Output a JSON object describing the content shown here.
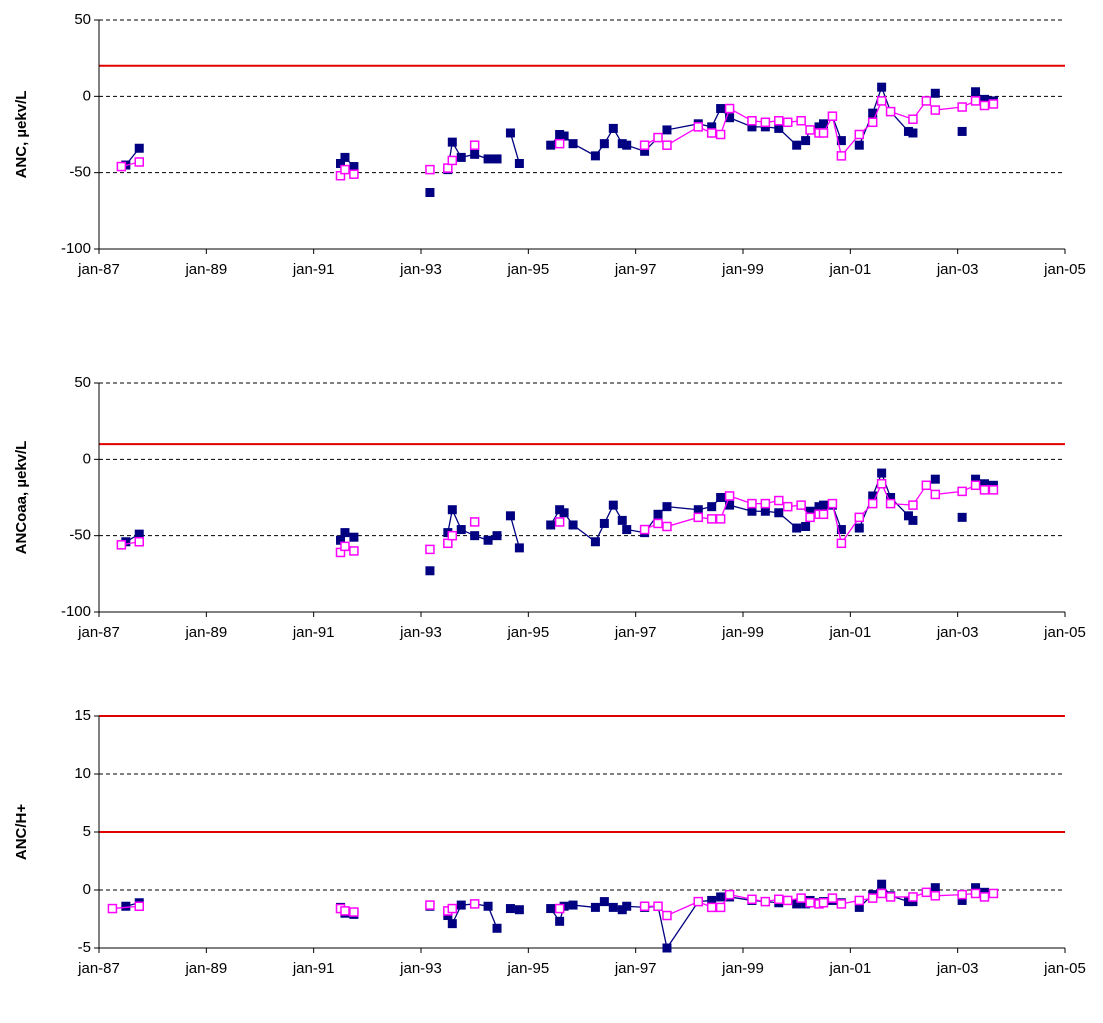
{
  "chart_data": [
    {
      "type": "line",
      "ylabel": "ANC, µekv/L",
      "ylim": [
        -100,
        50
      ],
      "yticks": [
        -100,
        -50,
        0,
        50
      ],
      "xlim": [
        "1987-01",
        "2005-01"
      ],
      "xticks": [
        {
          "value": "1987-01",
          "label": "jan-87"
        },
        {
          "value": "1989-01",
          "label": "jan-89"
        },
        {
          "value": "1991-01",
          "label": "jan-91"
        },
        {
          "value": "1993-01",
          "label": "jan-93"
        },
        {
          "value": "1995-01",
          "label": "jan-95"
        },
        {
          "value": "1997-01",
          "label": "jan-97"
        },
        {
          "value": "1999-01",
          "label": "jan-99"
        },
        {
          "value": "2001-01",
          "label": "jan-01"
        },
        {
          "value": "2003-01",
          "label": "jan-03"
        },
        {
          "value": "2005-01",
          "label": "jan-05"
        }
      ],
      "grid": true,
      "ref_lines": {
        "values": [
          20
        ],
        "color": "#e00000"
      },
      "series": [
        {
          "color": "#000080",
          "marker": "filled",
          "x": [
            "1987-07",
            "1987-10",
            null,
            "1991-07",
            "1991-08",
            "1991-10",
            null,
            "1993-03",
            null,
            "1993-07",
            "1993-08",
            "1993-10",
            "1994-01",
            "1994-04",
            "1994-06",
            null,
            "1994-09",
            "1994-11",
            null,
            "1995-06",
            "1995-08",
            "1995-09",
            "1995-11",
            "1996-04",
            "1996-06",
            "1996-08",
            "1996-10",
            "1996-11",
            "1997-03",
            "1997-06",
            "1997-08",
            "1998-03",
            "1998-06",
            "1998-08",
            "1998-10",
            "1999-03",
            "1999-06",
            "1999-09",
            "2000-01",
            "2000-03",
            "2000-04",
            "2000-06",
            "2000-07",
            "2000-09",
            "2000-11",
            null,
            "2001-03",
            "2001-06",
            "2001-08",
            "2001-10",
            "2002-02",
            "2002-03",
            null,
            "2002-08",
            null,
            "2003-02",
            null,
            "2003-05",
            "2003-07",
            "2003-09"
          ],
          "values": [
            -45,
            -34,
            null,
            -44,
            -40,
            -46,
            null,
            -63,
            null,
            -48,
            -30,
            -40,
            -38,
            -41,
            -41,
            null,
            -24,
            -44,
            null,
            -32,
            -25,
            -26,
            -31,
            -39,
            -31,
            -21,
            -31,
            -32,
            -36,
            -27,
            -22,
            -18,
            -20,
            -8,
            -14,
            -20,
            -20,
            -21,
            -32,
            -29,
            -22,
            -20,
            -18,
            -13,
            -29,
            null,
            -32,
            -11,
            6,
            -10,
            -23,
            -24,
            null,
            2,
            null,
            -23,
            null,
            3,
            -2,
            -3
          ]
        },
        {
          "color": "#ff00ff",
          "marker": "open",
          "x": [
            "1987-06",
            "1987-10",
            null,
            "1991-07",
            "1991-08",
            "1991-10",
            null,
            "1993-03",
            null,
            "1993-07",
            "1993-08",
            null,
            "1994-01",
            null,
            "1995-08",
            null,
            "1997-03",
            "1997-06",
            "1997-08",
            "1998-03",
            "1998-06",
            "1998-08",
            "1998-10",
            "1999-03",
            "1999-06",
            "1999-09",
            "1999-11",
            "2000-02",
            "2000-04",
            "2000-06",
            "2000-07",
            "2000-09",
            "2000-11",
            "2001-03",
            "2001-06",
            "2001-08",
            "2001-10",
            "2002-03",
            "2002-06",
            "2002-08",
            "2003-02",
            "2003-05",
            "2003-07",
            "2003-09"
          ],
          "values": [
            -46,
            -43,
            null,
            -52,
            -48,
            -51,
            null,
            -48,
            null,
            -47,
            -42,
            null,
            -32,
            null,
            -31,
            null,
            -32,
            -27,
            -32,
            -20,
            -24,
            -25,
            -8,
            -16,
            -17,
            -16,
            -17,
            -16,
            -22,
            -24,
            -24,
            -13,
            -39,
            -25,
            -17,
            -3,
            -10,
            -15,
            -3,
            -9,
            -7,
            -3,
            -6,
            -5
          ]
        }
      ]
    },
    {
      "type": "line",
      "ylabel": "ANCoaa, µekv/L",
      "ylim": [
        -100,
        50
      ],
      "yticks": [
        -100,
        -50,
        0,
        50
      ],
      "xlim": [
        "1987-01",
        "2005-01"
      ],
      "xticks": [
        {
          "value": "1987-01",
          "label": "jan-87"
        },
        {
          "value": "1989-01",
          "label": "jan-89"
        },
        {
          "value": "1991-01",
          "label": "jan-91"
        },
        {
          "value": "1993-01",
          "label": "jan-93"
        },
        {
          "value": "1995-01",
          "label": "jan-95"
        },
        {
          "value": "1997-01",
          "label": "jan-97"
        },
        {
          "value": "1999-01",
          "label": "jan-99"
        },
        {
          "value": "2001-01",
          "label": "jan-01"
        },
        {
          "value": "2003-01",
          "label": "jan-03"
        },
        {
          "value": "2005-01",
          "label": "jan-05"
        }
      ],
      "grid": true,
      "ref_lines": {
        "values": [
          10
        ],
        "color": "#e00000"
      },
      "series": [
        {
          "color": "#000080",
          "marker": "filled",
          "x": [
            "1987-07",
            "1987-10",
            null,
            "1991-07",
            "1991-08",
            "1991-10",
            null,
            "1993-03",
            null,
            "1993-07",
            "1993-08",
            "1993-10",
            "1994-01",
            "1994-04",
            "1994-06",
            null,
            "1994-09",
            "1994-11",
            null,
            "1995-06",
            "1995-08",
            "1995-09",
            "1995-11",
            "1996-04",
            "1996-06",
            "1996-08",
            "1996-10",
            "1996-11",
            "1997-03",
            "1997-06",
            "1997-08",
            "1998-03",
            "1998-06",
            "1998-08",
            "1998-10",
            "1999-03",
            "1999-06",
            "1999-09",
            "2000-01",
            "2000-03",
            "2000-04",
            "2000-06",
            "2000-07",
            "2000-09",
            "2000-11",
            null,
            "2001-03",
            "2001-06",
            "2001-08",
            "2001-10",
            "2002-02",
            "2002-03",
            null,
            "2002-08",
            null,
            "2003-02",
            null,
            "2003-05",
            "2003-07",
            "2003-09"
          ],
          "values": [
            -54,
            -49,
            null,
            -53,
            -48,
            -51,
            null,
            -73,
            null,
            -48,
            -33,
            -46,
            -50,
            -53,
            -50,
            null,
            -37,
            -58,
            null,
            -43,
            -33,
            -35,
            -43,
            -54,
            -42,
            -30,
            -40,
            -46,
            -48,
            -36,
            -31,
            -33,
            -31,
            -25,
            -30,
            -34,
            -34,
            -35,
            -45,
            -44,
            -34,
            -31,
            -30,
            -30,
            -46,
            null,
            -45,
            -24,
            -9,
            -25,
            -37,
            -40,
            null,
            -13,
            null,
            -38,
            null,
            -13,
            -16,
            -17
          ]
        },
        {
          "color": "#ff00ff",
          "marker": "open",
          "x": [
            "1987-06",
            "1987-10",
            null,
            "1991-07",
            "1991-08",
            "1991-10",
            null,
            "1993-03",
            null,
            "1993-07",
            "1993-08",
            null,
            "1994-01",
            null,
            "1995-08",
            null,
            "1997-03",
            "1997-06",
            "1997-08",
            "1998-03",
            "1998-06",
            "1998-08",
            "1998-10",
            "1999-03",
            "1999-06",
            "1999-09",
            "1999-11",
            "2000-02",
            "2000-04",
            "2000-06",
            "2000-07",
            "2000-09",
            "2000-11",
            "2001-03",
            "2001-06",
            "2001-08",
            "2001-10",
            "2002-03",
            "2002-06",
            "2002-08",
            "2003-02",
            "2003-05",
            "2003-07",
            "2003-09"
          ],
          "values": [
            -56,
            -54,
            null,
            -61,
            -57,
            -60,
            null,
            -59,
            null,
            -55,
            -50,
            null,
            -41,
            null,
            -41,
            null,
            -46,
            -42,
            -44,
            -38,
            -39,
            -39,
            -24,
            -29,
            -29,
            -27,
            -31,
            -30,
            -38,
            -36,
            -36,
            -29,
            -55,
            -38,
            -29,
            -16,
            -29,
            -30,
            -17,
            -23,
            -21,
            -17,
            -20,
            -20
          ]
        }
      ]
    },
    {
      "type": "line",
      "ylabel": "ANC/H+",
      "ylim": [
        -5,
        15
      ],
      "yticks": [
        -5,
        0,
        5,
        10,
        15
      ],
      "xlim": [
        "1987-01",
        "2005-01"
      ],
      "xticks": [
        {
          "value": "1987-01",
          "label": "jan-87"
        },
        {
          "value": "1989-01",
          "label": "jan-89"
        },
        {
          "value": "1991-01",
          "label": "jan-91"
        },
        {
          "value": "1993-01",
          "label": "jan-93"
        },
        {
          "value": "1995-01",
          "label": "jan-95"
        },
        {
          "value": "1997-01",
          "label": "jan-97"
        },
        {
          "value": "1999-01",
          "label": "jan-99"
        },
        {
          "value": "2001-01",
          "label": "jan-01"
        },
        {
          "value": "2003-01",
          "label": "jan-03"
        },
        {
          "value": "2005-01",
          "label": "jan-05"
        }
      ],
      "grid": true,
      "ref_lines": {
        "values": [
          5,
          15
        ],
        "color": "#e00000"
      },
      "series": [
        {
          "color": "#000080",
          "marker": "filled",
          "x": [
            "1987-07",
            "1987-10",
            null,
            "1991-07",
            "1991-08",
            "1991-10",
            null,
            "1993-03",
            null,
            "1993-07",
            "1993-08",
            "1993-10",
            "1994-01",
            "1994-04",
            "1994-06",
            null,
            "1994-09",
            "1994-11",
            null,
            "1995-06",
            "1995-08",
            "1995-09",
            "1995-11",
            "1996-04",
            "1996-06",
            "1996-08",
            "1996-10",
            "1996-11",
            "1997-03",
            "1997-06",
            "1997-08",
            "1998-03",
            "1998-06",
            "1998-08",
            "1998-10",
            "1999-03",
            "1999-06",
            "1999-09",
            "2000-01",
            "2000-03",
            "2000-04",
            "2000-06",
            "2000-07",
            "2000-09",
            "2000-11",
            null,
            "2001-03",
            "2001-06",
            "2001-08",
            "2001-10",
            "2002-02",
            "2002-03",
            null,
            "2002-08",
            null,
            "2003-02",
            null,
            "2003-05",
            "2003-07",
            "2003-09"
          ],
          "values": [
            -1.4,
            -1.1,
            null,
            -1.5,
            -2.0,
            -2.1,
            null,
            -1.4,
            null,
            -2.2,
            -2.9,
            -1.3,
            -1.2,
            -1.4,
            -3.3,
            null,
            -1.6,
            -1.7,
            null,
            -1.6,
            -2.7,
            -1.4,
            -1.3,
            -1.5,
            -1.0,
            -1.5,
            -1.7,
            -1.4,
            -1.5,
            -1.4,
            -5.0,
            -1.0,
            -0.9,
            -0.6,
            -0.6,
            -0.9,
            -1.0,
            -1.1,
            -1.2,
            -1.2,
            -0.9,
            -1.1,
            -1.0,
            -0.9,
            -1.1,
            null,
            -1.5,
            -0.4,
            0.5,
            -0.5,
            -1.0,
            -1.0,
            null,
            0.2,
            null,
            -0.9,
            null,
            0.2,
            -0.2,
            -0.3
          ]
        },
        {
          "color": "#ff00ff",
          "marker": "open",
          "x": [
            "1987-04",
            "1987-10",
            null,
            "1991-07",
            "1991-08",
            "1991-10",
            null,
            "1993-03",
            null,
            "1993-07",
            "1993-08",
            null,
            "1994-01",
            null,
            "1995-08",
            null,
            "1997-03",
            "1997-06",
            "1997-08",
            "1998-03",
            "1998-06",
            "1998-08",
            "1998-10",
            "1999-03",
            "1999-06",
            "1999-09",
            "1999-11",
            "2000-02",
            "2000-04",
            "2000-06",
            "2000-07",
            "2000-09",
            "2000-11",
            "2001-03",
            "2001-06",
            "2001-08",
            "2001-10",
            "2002-03",
            "2002-06",
            "2002-08",
            "2003-02",
            "2003-05",
            "2003-07",
            "2003-09"
          ],
          "values": [
            -1.6,
            -1.4,
            null,
            -1.6,
            -1.8,
            -1.9,
            null,
            -1.3,
            null,
            -1.8,
            -1.6,
            null,
            -1.2,
            null,
            -1.6,
            null,
            -1.4,
            -1.4,
            -2.2,
            -1.0,
            -1.5,
            -1.5,
            -0.4,
            -0.8,
            -1.0,
            -0.8,
            -0.9,
            -0.7,
            -1.1,
            -1.2,
            -1.1,
            -0.7,
            -1.2,
            -0.9,
            -0.7,
            -0.3,
            -0.6,
            -0.6,
            -0.2,
            -0.5,
            -0.4,
            -0.3,
            -0.6,
            -0.3
          ]
        }
      ]
    }
  ]
}
